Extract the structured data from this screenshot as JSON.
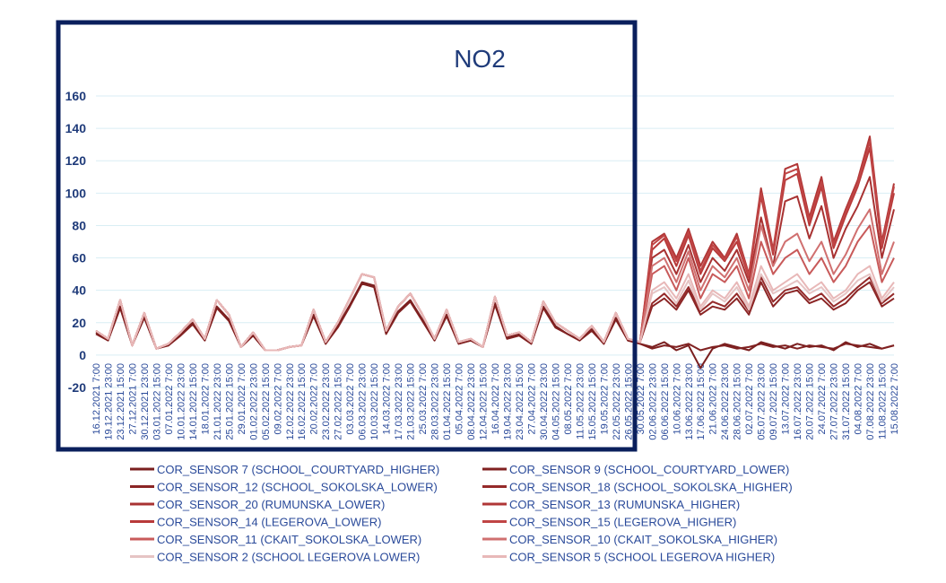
{
  "chart_data": {
    "type": "line",
    "title": "NO2",
    "xlabel": "",
    "ylabel": "",
    "ylim": [
      -20,
      160
    ],
    "yticks": [
      -20,
      0,
      20,
      40,
      60,
      80,
      100,
      120,
      140,
      160
    ],
    "grid": true,
    "legend_position": "bottom",
    "highlight_box_label": "",
    "x": [
      "16.12.2021 7:00",
      "19.12.2021 23:00",
      "23.12.2021 15:00",
      "27.12.2021 7:00",
      "30.12.2021 23:00",
      "03.01.2022 15:00",
      "07.01.2022 7:00",
      "10.01.2022 23:00",
      "14.01.2022 15:00",
      "18.01.2022 7:00",
      "21.01.2022 23:00",
      "25.01.2022 15:00",
      "29.01.2022 7:00",
      "01.02.2022 23:00",
      "05.02.2022 15:00",
      "09.02.2022 7:00",
      "12.02.2022 23:00",
      "16.02.2022 15:00",
      "20.02.2022 7:00",
      "23.02.2022 23:00",
      "27.02.2022 15:00",
      "03.03.2022 7:00",
      "06.03.2022 23:00",
      "10.03.2022 15:00",
      "14.03.2022 7:00",
      "17.03.2022 23:00",
      "21.03.2022 15:00",
      "25.03.2022 7:00",
      "28.03.2022 23:00",
      "01.04.2022 15:00",
      "05.04.2022 7:00",
      "08.04.2022 23:00",
      "12.04.2022 15:00",
      "16.04.2022 7:00",
      "19.04.2022 23:00",
      "23.04.2022 15:00",
      "27.04.2022 7:00",
      "30.04.2022 23:00",
      "04.05.2022 15:00",
      "08.05.2022 7:00",
      "11.05.2022 23:00",
      "15.05.2022 15:00",
      "19.05.2022 7:00",
      "22.05.2022 23:00",
      "26.05.2022 15:00",
      "30.05.2022 7:00",
      "02.06.2022 23:00",
      "06.06.2022 15:00",
      "10.06.2022 7:00",
      "13.06.2022 23:00",
      "17.06.2022 15:00",
      "21.06.2022 7:00",
      "24.06.2022 23:00",
      "28.06.2022 15:00",
      "02.07.2022 7:00",
      "05.07.2022 23:00",
      "09.07.2022 15:00",
      "13.07.2022 7:00",
      "16.07.2022 23:00",
      "20.07.2022 15:00",
      "24.07.2022 7:00",
      "27.07.2022 23:00",
      "31.07.2022 15:00",
      "04.08.2022 7:00",
      "07.08.2022 23:00",
      "11.08.2022 15:00",
      "15.08.2022 7:00"
    ],
    "series": [
      {
        "name": "COR_SENSOR 7 (SCHOOL_COURTYARD_HIGHER)",
        "color": "#7a1f1f",
        "values": [
          14,
          9,
          30,
          6,
          24,
          4,
          6,
          13,
          20,
          9,
          30,
          22,
          5,
          12,
          3,
          3,
          5,
          6,
          25,
          7,
          18,
          31,
          45,
          43,
          14,
          27,
          34,
          22,
          9,
          25,
          7,
          9,
          5,
          32,
          11,
          13,
          7,
          30,
          18,
          13,
          9,
          16,
          7,
          23,
          9,
          7,
          5,
          8,
          3,
          6,
          -8,
          4,
          7,
          5,
          3,
          8,
          6,
          4,
          7,
          5,
          6,
          3,
          8,
          5,
          7,
          4,
          6
        ]
      },
      {
        "name": "COR_SENSOR 9 (SCHOOL_COURTYARD_LOWER)",
        "color": "#802121",
        "values": [
          13,
          9,
          29,
          6,
          23,
          4,
          6,
          12,
          19,
          9,
          29,
          21,
          5,
          12,
          3,
          3,
          5,
          6,
          24,
          7,
          17,
          30,
          44,
          42,
          13,
          26,
          33,
          21,
          9,
          24,
          7,
          9,
          5,
          31,
          10,
          12,
          7,
          29,
          17,
          13,
          9,
          15,
          7,
          22,
          9,
          7,
          4,
          6,
          5,
          7,
          3,
          5,
          6,
          4,
          5,
          7,
          5,
          6,
          4,
          6,
          5,
          4,
          7,
          6,
          5,
          4,
          6
        ]
      },
      {
        "name": "COR_SENSOR_12 (SCHOOL_SOKOLSKA_LOWER)",
        "color": "#8b2525",
        "values": [
          15,
          10,
          34,
          6,
          26,
          4,
          7,
          14,
          22,
          10,
          34,
          25,
          5,
          14,
          3,
          3,
          5,
          6,
          28,
          8,
          20,
          35,
          50,
          48,
          15,
          30,
          38,
          25,
          10,
          28,
          8,
          10,
          5,
          36,
          12,
          14,
          8,
          33,
          20,
          15,
          10,
          18,
          8,
          26,
          10,
          8,
          30,
          35,
          28,
          40,
          25,
          30,
          28,
          35,
          25,
          45,
          30,
          38,
          40,
          32,
          35,
          28,
          32,
          40,
          45,
          30,
          35
        ]
      },
      {
        "name": "COR_SENSOR_18 (SCHOOL_SOKOLSKA_HIGHER)",
        "color": "#952a2a",
        "values": [
          15,
          10,
          34,
          6,
          26,
          4,
          7,
          14,
          22,
          10,
          34,
          25,
          5,
          14,
          3,
          3,
          5,
          6,
          28,
          8,
          20,
          35,
          50,
          48,
          15,
          30,
          38,
          25,
          10,
          28,
          8,
          10,
          5,
          36,
          12,
          14,
          8,
          33,
          20,
          15,
          10,
          18,
          8,
          26,
          10,
          8,
          32,
          38,
          30,
          42,
          27,
          33,
          30,
          38,
          27,
          48,
          33,
          40,
          42,
          34,
          38,
          30,
          35,
          42,
          48,
          32,
          38
        ]
      },
      {
        "name": "COR_SENSOR_20 (RUMUNSKA_LOWER)",
        "color": "#a83232",
        "values": [
          15,
          10,
          34,
          6,
          26,
          4,
          7,
          14,
          22,
          10,
          34,
          25,
          5,
          14,
          3,
          3,
          5,
          6,
          28,
          8,
          20,
          35,
          50,
          48,
          15,
          30,
          38,
          25,
          10,
          28,
          8,
          10,
          5,
          36,
          12,
          14,
          8,
          33,
          20,
          15,
          10,
          18,
          8,
          26,
          10,
          8,
          60,
          65,
          50,
          68,
          45,
          60,
          52,
          65,
          45,
          85,
          55,
          95,
          98,
          72,
          92,
          60,
          78,
          92,
          110,
          60,
          90
        ]
      },
      {
        "name": "COR_SENSOR_13 (RUMUNSKA_HIGHER)",
        "color": "#b03636",
        "values": [
          15,
          10,
          34,
          6,
          26,
          4,
          7,
          14,
          22,
          10,
          34,
          25,
          5,
          14,
          3,
          3,
          5,
          6,
          28,
          8,
          20,
          35,
          50,
          48,
          15,
          30,
          38,
          25,
          10,
          28,
          8,
          10,
          5,
          36,
          12,
          14,
          8,
          33,
          20,
          15,
          10,
          18,
          8,
          26,
          10,
          8,
          70,
          75,
          60,
          78,
          55,
          70,
          60,
          75,
          50,
          103,
          65,
          115,
          118,
          85,
          110,
          70,
          90,
          108,
          135,
          70,
          106
        ]
      },
      {
        "name": "COR_SENSOR_14 (LEGEROVA_LOWER)",
        "color": "#b83a3a",
        "values": [
          15,
          10,
          34,
          6,
          26,
          4,
          7,
          14,
          22,
          10,
          34,
          25,
          5,
          14,
          3,
          3,
          5,
          6,
          28,
          8,
          20,
          35,
          50,
          48,
          15,
          30,
          38,
          25,
          10,
          28,
          8,
          10,
          5,
          36,
          12,
          14,
          8,
          33,
          20,
          15,
          10,
          18,
          8,
          26,
          10,
          8,
          65,
          72,
          55,
          74,
          50,
          66,
          58,
          70,
          48,
          98,
          62,
          108,
          112,
          80,
          104,
          66,
          86,
          104,
          128,
          66,
          100
        ]
      },
      {
        "name": "COR_SENSOR_15 (LEGEROVA_HIGHER)",
        "color": "#c04545",
        "values": [
          15,
          10,
          34,
          6,
          26,
          4,
          7,
          14,
          22,
          10,
          34,
          25,
          5,
          14,
          3,
          3,
          5,
          6,
          28,
          8,
          20,
          35,
          50,
          48,
          15,
          30,
          38,
          25,
          10,
          28,
          8,
          10,
          5,
          36,
          12,
          14,
          8,
          33,
          20,
          15,
          10,
          18,
          8,
          26,
          10,
          8,
          68,
          74,
          58,
          76,
          52,
          68,
          59,
          73,
          49,
          100,
          64,
          112,
          115,
          83,
          107,
          68,
          88,
          106,
          132,
          68,
          104
        ]
      },
      {
        "name": "COR_SENSOR_11 (CKAIT_SOKOLSKA_LOWER)",
        "color": "#c85a5a",
        "values": [
          15,
          10,
          34,
          6,
          26,
          4,
          7,
          14,
          22,
          10,
          34,
          25,
          5,
          14,
          3,
          3,
          5,
          6,
          28,
          8,
          20,
          35,
          50,
          48,
          15,
          30,
          38,
          25,
          10,
          28,
          8,
          10,
          5,
          36,
          12,
          14,
          8,
          33,
          20,
          15,
          10,
          18,
          8,
          26,
          10,
          8,
          50,
          55,
          40,
          60,
          35,
          50,
          45,
          55,
          35,
          70,
          50,
          60,
          65,
          50,
          60,
          45,
          55,
          70,
          80,
          45,
          60
        ]
      },
      {
        "name": "COR_SENSOR_10 (CKAIT_SOKOLSKA_HIGHER)",
        "color": "#d07070",
        "values": [
          15,
          10,
          34,
          6,
          26,
          4,
          7,
          14,
          22,
          10,
          34,
          25,
          5,
          14,
          3,
          3,
          5,
          6,
          28,
          8,
          20,
          35,
          50,
          48,
          15,
          30,
          38,
          25,
          10,
          28,
          8,
          10,
          5,
          36,
          12,
          14,
          8,
          33,
          20,
          15,
          10,
          18,
          8,
          26,
          10,
          8,
          55,
          60,
          45,
          64,
          40,
          55,
          48,
          60,
          40,
          80,
          55,
          70,
          75,
          58,
          70,
          50,
          62,
          78,
          90,
          50,
          70
        ]
      },
      {
        "name": "COR_SENSOR 2 (SCHOOL LEGEROVA LOWER)",
        "color": "#e6c4c4",
        "values": [
          15,
          10,
          34,
          6,
          26,
          4,
          7,
          14,
          22,
          10,
          34,
          25,
          5,
          14,
          3,
          3,
          5,
          6,
          28,
          8,
          20,
          35,
          50,
          48,
          15,
          30,
          38,
          25,
          10,
          28,
          8,
          10,
          5,
          36,
          12,
          14,
          8,
          33,
          20,
          15,
          10,
          18,
          8,
          26,
          10,
          8,
          38,
          42,
          32,
          46,
          28,
          38,
          33,
          42,
          28,
          50,
          38,
          42,
          46,
          38,
          42,
          33,
          38,
          46,
          50,
          33,
          42
        ]
      },
      {
        "name": "COR_SENSOR 5 (SCHOOL LEGEROVA HIGHER)",
        "color": "#e8b8b8",
        "values": [
          15,
          10,
          34,
          6,
          26,
          4,
          7,
          14,
          22,
          10,
          34,
          25,
          5,
          14,
          3,
          3,
          5,
          6,
          28,
          8,
          20,
          35,
          50,
          48,
          15,
          30,
          38,
          25,
          10,
          28,
          8,
          10,
          5,
          36,
          12,
          14,
          8,
          33,
          20,
          15,
          10,
          18,
          8,
          26,
          10,
          8,
          40,
          45,
          35,
          50,
          30,
          40,
          35,
          45,
          30,
          55,
          40,
          45,
          50,
          40,
          45,
          35,
          40,
          50,
          55,
          35,
          45
        ]
      }
    ]
  }
}
